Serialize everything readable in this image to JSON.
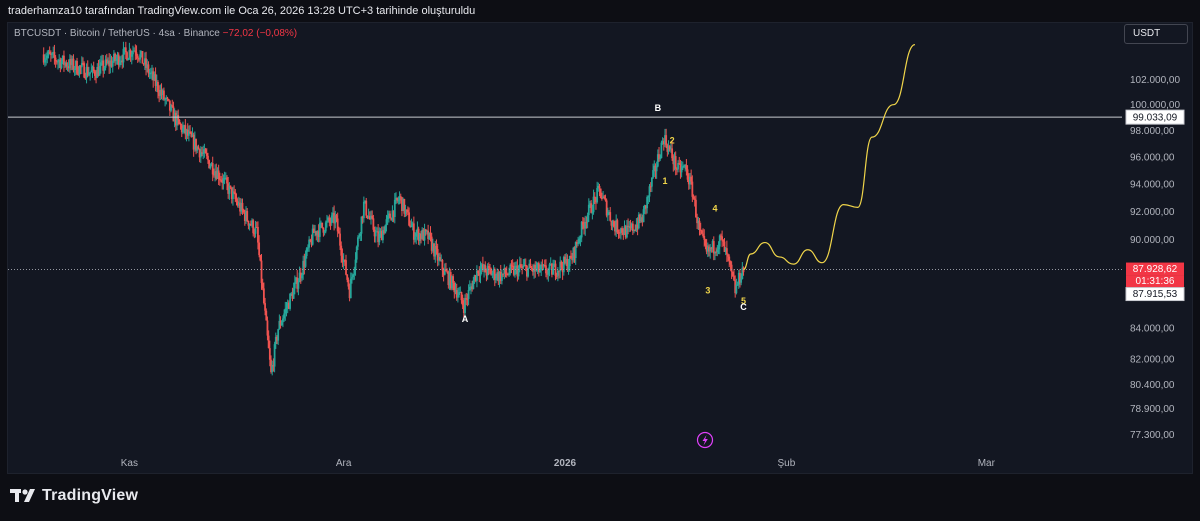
{
  "header": {
    "text": "traderhamza10 tarafından TradingView.com ile Oca 26, 2026 13:28 UTC+3 tarihinde oluşturuldu"
  },
  "legend": {
    "symbol": "BTCUSDT · Bitcoin / TetherUS · 4sa · Binance",
    "change": "−72,02 (−0,08%)"
  },
  "currency_button": "USDT",
  "brand": {
    "name": "TradingView"
  },
  "colors": {
    "background": "#131722",
    "up": "#26a69a",
    "down": "#ef5350",
    "projection": "#f0d54a",
    "wave_label": "#f0d54a",
    "price_tag": "#f23645"
  },
  "chart_data": {
    "type": "candlestick",
    "symbol": "BTCUSDT",
    "timeframe": "4sa",
    "exchange": "Binance",
    "y_axis": {
      "scale": "log",
      "range": [
        76500,
        106000
      ],
      "tick_labels": [
        "102.000,00",
        "100.000,00",
        "98.000,00",
        "96.000,00",
        "94.000,00",
        "92.000,00",
        "90.000,00",
        "84.000,00",
        "82.000,00",
        "80.400,00",
        "78.900,00",
        "77.300,00"
      ],
      "tick_values": [
        102000,
        100000,
        98000,
        96000,
        94000,
        92000,
        90000,
        84000,
        82000,
        80400,
        78900,
        77300
      ]
    },
    "x_axis": {
      "tick_labels": [
        "Kas",
        "Ara",
        "2026",
        "Şub",
        "Mar"
      ],
      "tick_dates": [
        "2025-11-01",
        "2025-12-01",
        "2026-01-01",
        "2026-02-01",
        "2026-03-01"
      ],
      "range": [
        "2025-10-15",
        "2026-03-20"
      ]
    },
    "price_series": [
      {
        "date": "2025-10-20",
        "price": 104000
      },
      {
        "date": "2025-10-27",
        "price": 102500
      },
      {
        "date": "2025-11-02",
        "price": 104500
      },
      {
        "date": "2025-11-05",
        "price": 101500
      },
      {
        "date": "2025-11-08",
        "price": 98500
      },
      {
        "date": "2025-11-11",
        "price": 96500
      },
      {
        "date": "2025-11-14",
        "price": 94500
      },
      {
        "date": "2025-11-17",
        "price": 92000
      },
      {
        "date": "2025-11-19",
        "price": 90500
      },
      {
        "date": "2025-11-21",
        "price": 81000
      },
      {
        "date": "2025-11-22",
        "price": 84000
      },
      {
        "date": "2025-11-25",
        "price": 87500
      },
      {
        "date": "2025-11-27",
        "price": 90500
      },
      {
        "date": "2025-11-30",
        "price": 91500
      },
      {
        "date": "2025-12-02",
        "price": 86500
      },
      {
        "date": "2025-12-04",
        "price": 92500
      },
      {
        "date": "2025-12-06",
        "price": 90000
      },
      {
        "date": "2025-12-09",
        "price": 93000
      },
      {
        "date": "2025-12-11",
        "price": 90500
      },
      {
        "date": "2025-12-13",
        "price": 90200
      },
      {
        "date": "2025-12-15",
        "price": 88000
      },
      {
        "date": "2025-12-17",
        "price": 86500
      },
      {
        "date": "2025-12-18",
        "price": 85500
      },
      {
        "date": "2025-12-20",
        "price": 88000
      },
      {
        "date": "2025-12-23",
        "price": 87500
      },
      {
        "date": "2025-12-26",
        "price": 88000
      },
      {
        "date": "2025-12-30",
        "price": 87800
      },
      {
        "date": "2026-01-02",
        "price": 88500
      },
      {
        "date": "2026-01-04",
        "price": 91500
      },
      {
        "date": "2026-01-06",
        "price": 93500
      },
      {
        "date": "2026-01-08",
        "price": 91000
      },
      {
        "date": "2026-01-10",
        "price": 90500
      },
      {
        "date": "2026-01-12",
        "price": 91500
      },
      {
        "date": "2026-01-14",
        "price": 95500
      },
      {
        "date": "2026-01-15",
        "price": 97500
      },
      {
        "date": "2026-01-17",
        "price": 95000
      },
      {
        "date": "2026-01-18",
        "price": 95200
      },
      {
        "date": "2026-01-19",
        "price": 93500
      },
      {
        "date": "2026-01-20",
        "price": 90500
      },
      {
        "date": "2026-01-21",
        "price": 89000
      },
      {
        "date": "2026-01-22",
        "price": 89500
      },
      {
        "date": "2026-01-23",
        "price": 90000
      },
      {
        "date": "2026-01-24",
        "price": 88500
      },
      {
        "date": "2026-01-25",
        "price": 86500
      },
      {
        "date": "2026-01-26",
        "price": 87928.62
      }
    ],
    "projection": [
      {
        "date": "2026-01-26",
        "price": 87928.62
      },
      {
        "date": "2026-01-27",
        "price": 89000
      },
      {
        "date": "2026-01-29",
        "price": 89800
      },
      {
        "date": "2026-01-31",
        "price": 88800
      },
      {
        "date": "2026-02-02",
        "price": 88300
      },
      {
        "date": "2026-02-04",
        "price": 89300
      },
      {
        "date": "2026-02-06",
        "price": 88400
      },
      {
        "date": "2026-02-09",
        "price": 92500
      },
      {
        "date": "2026-02-11",
        "price": 92300
      },
      {
        "date": "2026-02-13",
        "price": 97500
      },
      {
        "date": "2026-02-16",
        "price": 100000
      },
      {
        "date": "2026-02-19",
        "price": 104800
      }
    ],
    "horizontal_lines": [
      {
        "price": 99033.09,
        "label": "99.033,09"
      },
      {
        "price": 87928.62,
        "label": "87.928,62"
      }
    ],
    "price_tags": {
      "last": "87.928,62",
      "countdown": "01:31:36",
      "low": "87.915,53"
    },
    "wave_labels": [
      {
        "text": "A",
        "date": "2025-12-18",
        "price": 84400,
        "color": "#ffffff"
      },
      {
        "text": "B",
        "date": "2026-01-14",
        "price": 99500,
        "color": "#ffffff"
      },
      {
        "text": "1",
        "date": "2026-01-15",
        "price": 94000,
        "color": "#f0d54a"
      },
      {
        "text": "2",
        "date": "2026-01-16",
        "price": 97000,
        "color": "#f0d54a"
      },
      {
        "text": "3",
        "date": "2026-01-21",
        "price": 86300,
        "color": "#f0d54a"
      },
      {
        "text": "4",
        "date": "2026-01-22",
        "price": 92000,
        "color": "#f0d54a"
      },
      {
        "text": "5",
        "date": "2026-01-26",
        "price": 85600,
        "color": "#f0d54a"
      },
      {
        "text": "C",
        "date": "2026-01-26",
        "price": 85200,
        "color": "#ffffff"
      }
    ]
  }
}
